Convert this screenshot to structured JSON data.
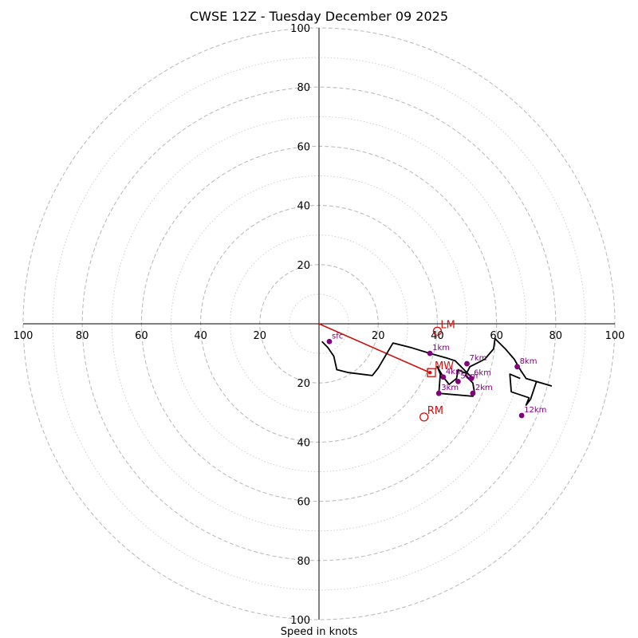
{
  "chart_data": {
    "type": "hodograph",
    "title": "CWSE 12Z - Tuesday December 09 2025",
    "xlabel": "Speed in knots",
    "units": "knots",
    "max_speed": 100,
    "major_rings": [
      20,
      40,
      60,
      80,
      100
    ],
    "minor_rings": [
      10,
      30,
      50,
      70,
      90
    ],
    "tick_labels": [
      "20",
      "40",
      "60",
      "80",
      "100"
    ],
    "trace_color": "#000000",
    "height_marker_color": "#800080",
    "motion_color": "#cc1111",
    "wind_profile": [
      [
        1,
        -6
      ],
      [
        3,
        -8
      ],
      [
        5,
        -11
      ],
      [
        6,
        -15.5
      ],
      [
        10,
        -16.5
      ],
      [
        18,
        -17.5
      ],
      [
        20,
        -15
      ],
      [
        25,
        -6.5
      ],
      [
        31,
        -8
      ],
      [
        37.5,
        -10
      ],
      [
        43,
        -11.5
      ],
      [
        46,
        -12.5
      ],
      [
        48,
        -14.5
      ],
      [
        50,
        -16.5
      ],
      [
        52,
        -18.5
      ],
      [
        50.5,
        -17
      ],
      [
        48,
        -16
      ],
      [
        47,
        -15.5
      ],
      [
        46.5,
        -18.5
      ],
      [
        44,
        -20.5
      ],
      [
        42,
        -18
      ],
      [
        40,
        -14.5
      ],
      [
        41,
        -17
      ],
      [
        40.5,
        -23.5
      ],
      [
        52,
        -24.5
      ],
      [
        52.5,
        -23
      ],
      [
        52,
        -20
      ],
      [
        49.5,
        -17.5
      ],
      [
        51,
        -14.5
      ],
      [
        56,
        -12
      ],
      [
        59,
        -8.5
      ],
      [
        59.5,
        -5
      ],
      [
        63,
        -8.5
      ],
      [
        66,
        -12
      ],
      [
        68,
        -15.5
      ],
      [
        70,
        -18.5
      ],
      [
        78.5,
        -21
      ],
      [
        73.5,
        -19.5
      ],
      [
        71.5,
        -25.5
      ],
      [
        70,
        -27.5
      ],
      [
        71,
        -25
      ],
      [
        65,
        -23
      ],
      [
        64.5,
        -17
      ],
      [
        68,
        -18.5
      ]
    ],
    "height_markers": [
      {
        "label": "sfc",
        "u": 3.5,
        "v": -6
      },
      {
        "label": "1km",
        "u": 37.5,
        "v": -10
      },
      {
        "label": "2km",
        "u": 52,
        "v": -23.5
      },
      {
        "label": "3km",
        "u": 40.5,
        "v": -23.5
      },
      {
        "label": "4km",
        "u": 42,
        "v": -18
      },
      {
        "label": "5km",
        "u": 47,
        "v": -19.5
      },
      {
        "label": "6km",
        "u": 51.5,
        "v": -18.5
      },
      {
        "label": "7km",
        "u": 50,
        "v": -13.5
      },
      {
        "label": "8km",
        "u": 67,
        "v": -14.5
      },
      {
        "label": "12km",
        "u": 68.5,
        "v": -31
      }
    ],
    "storm_motion": [
      {
        "label": "LM",
        "u": 40,
        "v": -2.5,
        "marker": "circle"
      },
      {
        "label": "MW",
        "u": 38,
        "v": -16.5,
        "marker": "square"
      },
      {
        "label": "RM",
        "u": 35.5,
        "v": -31.5,
        "marker": "circle"
      }
    ],
    "shear_vector": {
      "from": [
        0,
        0
      ],
      "to": [
        37.5,
        -16.5
      ]
    }
  }
}
